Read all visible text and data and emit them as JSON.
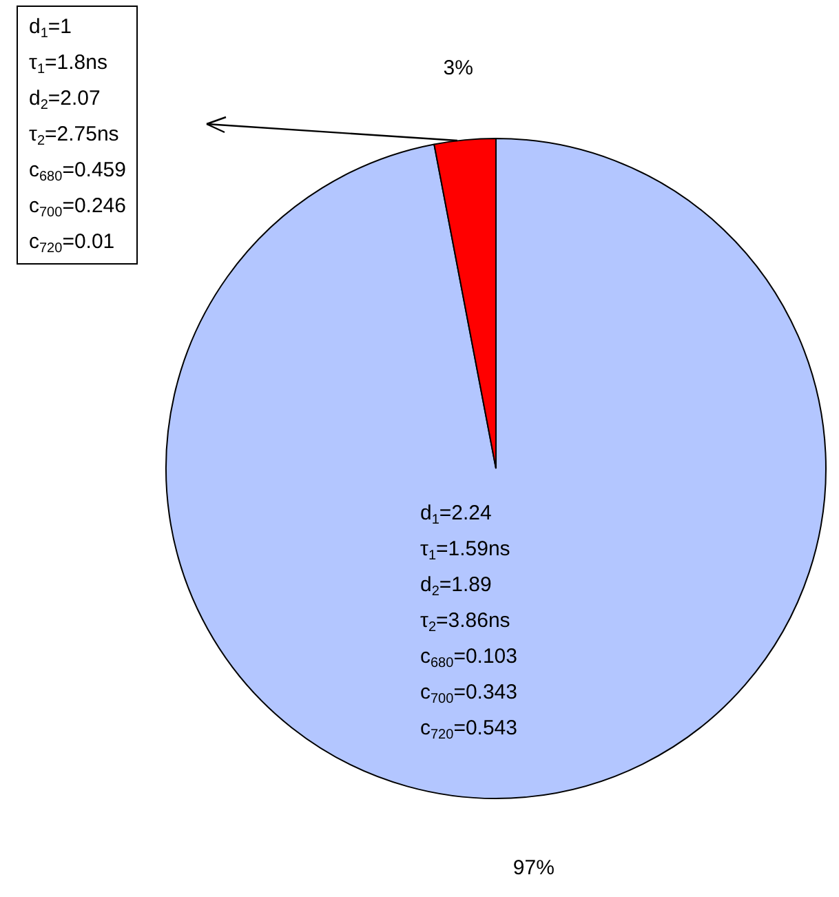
{
  "chart_data": {
    "type": "pie",
    "categories": [
      null,
      null
    ],
    "values": [
      97,
      3
    ],
    "colors": [
      "#b3c6ff",
      "#ff0000"
    ],
    "value_labels": [
      "97%",
      "3%"
    ],
    "annotations": [
      "d$_{1}$=2.24\nτ$_{1}$=1.59ns\nd$_{2}$=1.89\nτ$_{2}$=3.86ns\nc$_{680}$=0.103\nc$_{700}$=0.343\nc$_{720}$=0.543",
      "d$_{1}$=1\nτ$_{1}$=1.8ns\nd$_{2}$=2.07\nτ$_{2}$=2.75ns\nc$_{680}$=0.459\nc$_{700}$=0.246\nc$_{720}$=0.01"
    ]
  }
}
